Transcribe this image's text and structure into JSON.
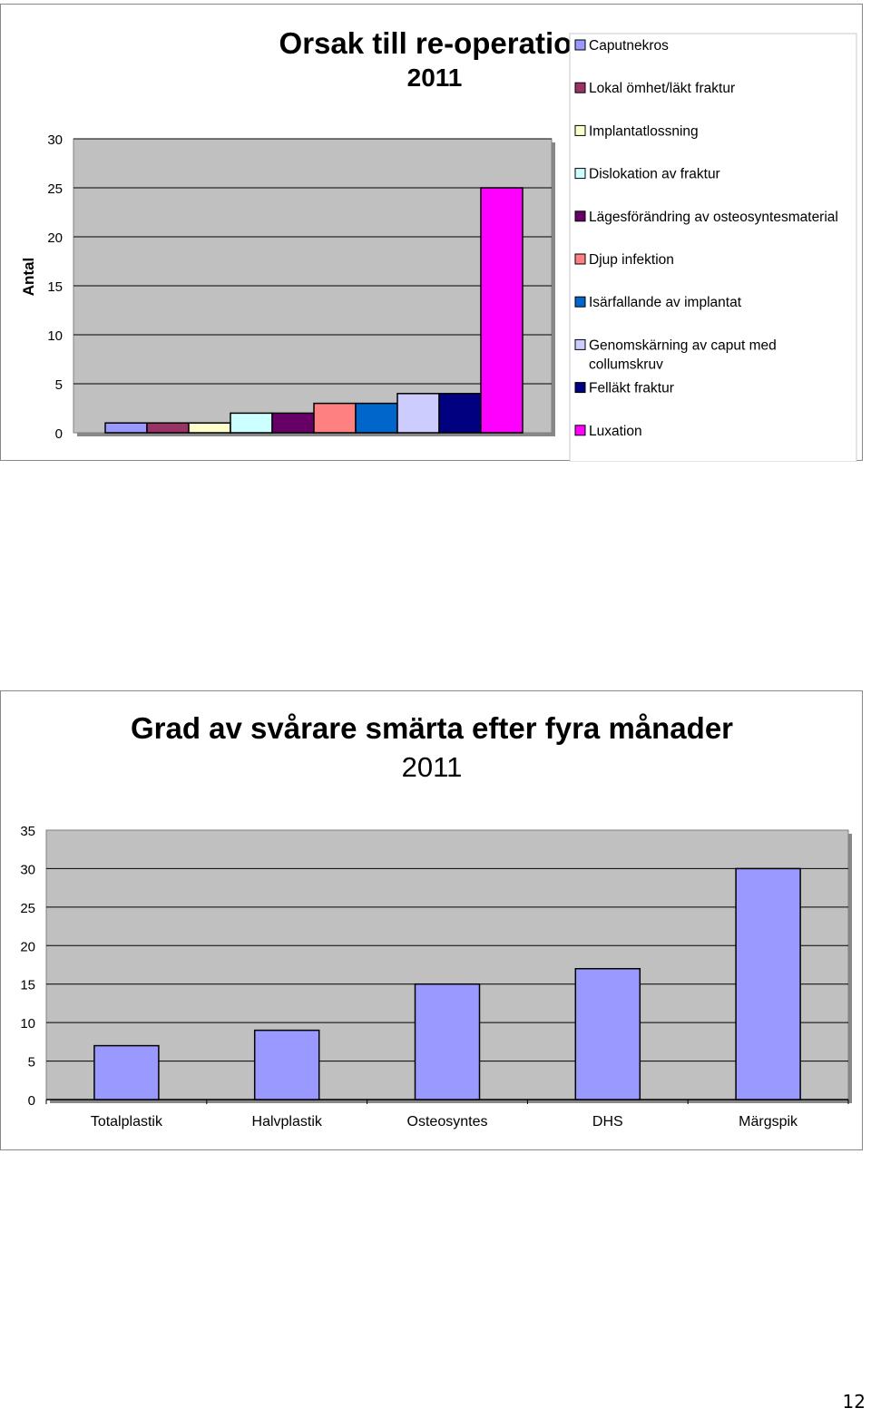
{
  "page_number": "12",
  "chart_data": [
    {
      "type": "bar",
      "title": "Orsak till re-operation",
      "subtitle": "2011",
      "ylabel": "Antal",
      "xlabel": "",
      "ylim": [
        0,
        30
      ],
      "yticks": [
        "0",
        "5",
        "10",
        "15",
        "20",
        "25",
        "30"
      ],
      "grid": true,
      "legend_position": "right",
      "series": [
        {
          "name": "Caputnekros",
          "value": 1,
          "color": "#9999ff"
        },
        {
          "name": "Lokal ömhet/läkt fraktur",
          "value": 1,
          "color": "#993366"
        },
        {
          "name": "Implantatlossning",
          "value": 1,
          "color": "#ffffcc"
        },
        {
          "name": "Dislokation av fraktur",
          "value": 2,
          "color": "#ccffff"
        },
        {
          "name": "Lägesförändring av osteosyntesmaterial",
          "value": 2,
          "color": "#660066"
        },
        {
          "name": "Djup infektion",
          "value": 3,
          "color": "#ff8080"
        },
        {
          "name": "Isärfallande av implantat",
          "value": 3,
          "color": "#0066cc"
        },
        {
          "name": "Genomskärning av caput med collumskruv",
          "value": 4,
          "color": "#ccccff"
        },
        {
          "name": "Felläkt fraktur",
          "value": 4,
          "color": "#000080"
        },
        {
          "name": "Luxation",
          "value": 25,
          "color": "#ff00ff"
        }
      ]
    },
    {
      "type": "bar",
      "title": "Grad av svårare smärta efter fyra månader",
      "subtitle": "2011",
      "xlabel": "",
      "ylabel": "",
      "ylim": [
        0,
        35
      ],
      "yticks": [
        "0",
        "5",
        "10",
        "15",
        "20",
        "25",
        "30",
        "35"
      ],
      "grid": true,
      "bar_color": "#9999ff",
      "categories": [
        "Totalplastik",
        "Halvplastik",
        "Osteosyntes",
        "DHS",
        "Märgspik"
      ],
      "values": [
        7,
        9,
        15,
        17,
        30
      ]
    }
  ]
}
